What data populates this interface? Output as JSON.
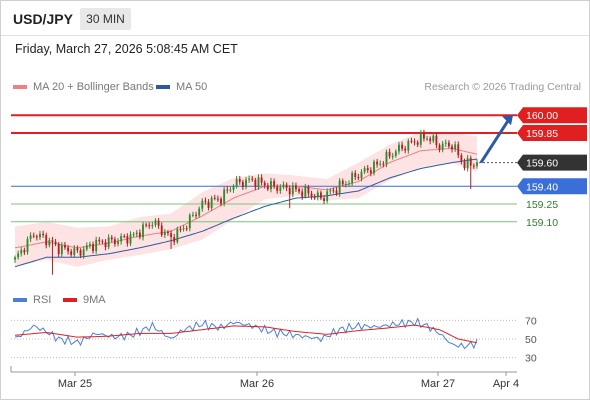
{
  "header": {
    "symbol": "USD/JPY",
    "timeframe": "30 MIN",
    "datetime": "Friday, March 27, 2026 5:08:45 AM CET"
  },
  "legend": {
    "ma20": "MA 20 + Bollinger Bands",
    "ma50": "MA 50",
    "credit": "Research © 2026 Trading Central"
  },
  "colors": {
    "bull": "#2e8b2e",
    "bear": "#b02020",
    "resistance": "#e02020",
    "pivot": "#3a6fd8",
    "support": "#7cc47c",
    "ma20": "#f08080",
    "ma50": "#2c5a9e",
    "band": "#fde3e3",
    "rsi": "#4a7fd4",
    "rsi_ma": "#e02020"
  },
  "chart_data": [
    {
      "type": "line",
      "subtype": "candlestick",
      "y_range": [
        158.6,
        160.12
      ],
      "x_ticks": [
        "Mar 25",
        "Mar 26",
        "Mar 27",
        "Apr 4"
      ],
      "levels": [
        {
          "value": 160.0,
          "label": "160.00",
          "kind": "resistance"
        },
        {
          "value": 159.85,
          "label": "159.85",
          "kind": "resistance"
        },
        {
          "value": 159.6,
          "label": "159.60",
          "kind": "current"
        },
        {
          "value": 159.4,
          "label": "159.40",
          "kind": "pivot"
        },
        {
          "value": 159.25,
          "label": "159.25",
          "kind": "support"
        },
        {
          "value": 159.1,
          "label": "159.10",
          "kind": "support"
        }
      ],
      "close_anchors": [
        [
          0,
          158.78
        ],
        [
          6,
          159.0
        ],
        [
          10,
          158.95
        ],
        [
          14,
          158.88
        ],
        [
          20,
          158.84
        ],
        [
          26,
          158.92
        ],
        [
          32,
          158.94
        ],
        [
          38,
          158.98
        ],
        [
          44,
          159.1
        ],
        [
          50,
          158.96
        ],
        [
          54,
          159.05
        ],
        [
          60,
          159.25
        ],
        [
          66,
          159.3
        ],
        [
          70,
          159.42
        ],
        [
          76,
          159.45
        ],
        [
          82,
          159.4
        ],
        [
          88,
          159.38
        ],
        [
          94,
          159.34
        ],
        [
          98,
          159.3
        ],
        [
          104,
          159.4
        ],
        [
          110,
          159.5
        ],
        [
          116,
          159.58
        ],
        [
          122,
          159.7
        ],
        [
          128,
          159.78
        ],
        [
          132,
          159.82
        ],
        [
          136,
          159.74
        ],
        [
          140,
          159.75
        ],
        [
          144,
          159.58
        ],
        [
          148,
          159.6
        ]
      ],
      "ma20_anchors": [
        [
          0,
          158.88
        ],
        [
          10,
          158.93
        ],
        [
          20,
          158.88
        ],
        [
          30,
          158.92
        ],
        [
          40,
          158.98
        ],
        [
          50,
          159.02
        ],
        [
          60,
          159.15
        ],
        [
          70,
          159.3
        ],
        [
          80,
          159.4
        ],
        [
          90,
          159.4
        ],
        [
          100,
          159.37
        ],
        [
          110,
          159.44
        ],
        [
          120,
          159.6
        ],
        [
          130,
          159.7
        ],
        [
          140,
          159.72
        ],
        [
          148,
          159.67
        ]
      ],
      "band_upper_anchors": [
        [
          0,
          159.06
        ],
        [
          10,
          159.1
        ],
        [
          20,
          159.05
        ],
        [
          30,
          159.06
        ],
        [
          40,
          159.14
        ],
        [
          50,
          159.17
        ],
        [
          60,
          159.35
        ],
        [
          70,
          159.47
        ],
        [
          80,
          159.51
        ],
        [
          90,
          159.49
        ],
        [
          100,
          159.46
        ],
        [
          110,
          159.6
        ],
        [
          120,
          159.75
        ],
        [
          130,
          159.86
        ],
        [
          140,
          159.86
        ],
        [
          148,
          159.82
        ]
      ],
      "band_lower_anchors": [
        [
          0,
          158.72
        ],
        [
          10,
          158.78
        ],
        [
          20,
          158.72
        ],
        [
          30,
          158.78
        ],
        [
          40,
          158.82
        ],
        [
          50,
          158.87
        ],
        [
          60,
          158.95
        ],
        [
          70,
          159.12
        ],
        [
          80,
          159.29
        ],
        [
          90,
          159.32
        ],
        [
          100,
          159.28
        ],
        [
          110,
          159.3
        ],
        [
          120,
          159.45
        ],
        [
          130,
          159.56
        ],
        [
          140,
          159.6
        ],
        [
          148,
          159.52
        ]
      ],
      "ma50_anchors": [
        [
          0,
          158.72
        ],
        [
          10,
          158.8
        ],
        [
          20,
          158.8
        ],
        [
          30,
          158.83
        ],
        [
          40,
          158.88
        ],
        [
          50,
          158.94
        ],
        [
          60,
          159.02
        ],
        [
          70,
          159.13
        ],
        [
          80,
          159.23
        ],
        [
          90,
          159.3
        ],
        [
          100,
          159.32
        ],
        [
          110,
          159.36
        ],
        [
          120,
          159.47
        ],
        [
          130,
          159.55
        ],
        [
          140,
          159.6
        ],
        [
          148,
          159.63
        ]
      ]
    },
    {
      "type": "line",
      "title": "RSI",
      "series": [
        {
          "name": "RSI"
        },
        {
          "name": "9MA"
        }
      ],
      "y_ticks": [
        70,
        50,
        30
      ],
      "y_range": [
        20,
        80
      ],
      "rsi_anchors": [
        [
          0,
          50
        ],
        [
          6,
          64
        ],
        [
          10,
          58
        ],
        [
          14,
          50
        ],
        [
          20,
          46
        ],
        [
          26,
          56
        ],
        [
          32,
          52
        ],
        [
          38,
          55
        ],
        [
          44,
          64
        ],
        [
          50,
          50
        ],
        [
          54,
          60
        ],
        [
          60,
          66
        ],
        [
          66,
          62
        ],
        [
          70,
          68
        ],
        [
          76,
          64
        ],
        [
          82,
          58
        ],
        [
          88,
          55
        ],
        [
          94,
          52
        ],
        [
          98,
          50
        ],
        [
          104,
          60
        ],
        [
          110,
          64
        ],
        [
          116,
          63
        ],
        [
          122,
          66
        ],
        [
          128,
          68
        ],
        [
          132,
          64
        ],
        [
          136,
          56
        ],
        [
          140,
          44
        ],
        [
          144,
          42
        ],
        [
          148,
          46
        ]
      ],
      "ma_anchors": [
        [
          0,
          54
        ],
        [
          10,
          57
        ],
        [
          20,
          52
        ],
        [
          30,
          53
        ],
        [
          40,
          56
        ],
        [
          50,
          56
        ],
        [
          60,
          60
        ],
        [
          70,
          64
        ],
        [
          80,
          63
        ],
        [
          90,
          58
        ],
        [
          100,
          55
        ],
        [
          110,
          59
        ],
        [
          120,
          62
        ],
        [
          128,
          65
        ],
        [
          136,
          60
        ],
        [
          142,
          50
        ],
        [
          148,
          46
        ]
      ]
    }
  ]
}
